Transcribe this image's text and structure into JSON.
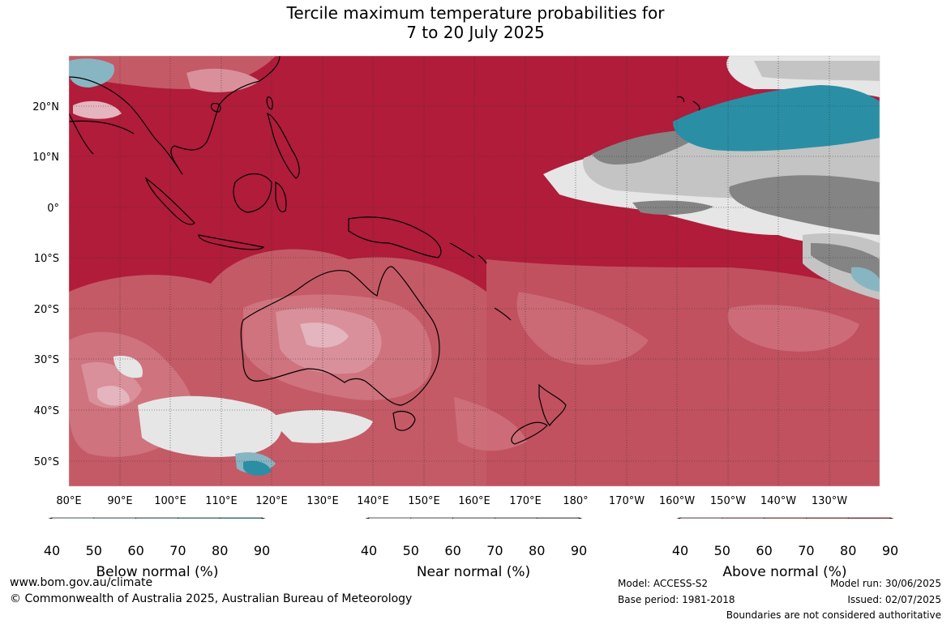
{
  "title": {
    "line1": "Tercile maximum temperature probabilities for",
    "line2": "7 to 20 July 2025"
  },
  "map": {
    "lat_labels": [
      "20°N",
      "10°N",
      "0°",
      "10°S",
      "20°S",
      "30°S",
      "40°S",
      "50°S"
    ],
    "lon_labels": [
      "80°E",
      "90°E",
      "100°E",
      "110°E",
      "120°E",
      "130°E",
      "140°E",
      "150°E",
      "160°E",
      "170°E",
      "180°",
      "170°W",
      "160°W",
      "150°W",
      "140°W",
      "130°W"
    ]
  },
  "colorbars": [
    {
      "name": "Below normal (%)",
      "ticks": [
        "40",
        "50",
        "60",
        "70",
        "80",
        "90"
      ],
      "colors": [
        "#ffffff",
        "#cde3e9",
        "#a8cad2",
        "#88b5c2",
        "#6aacb9",
        "#46a1b3",
        "#2a8fa5"
      ]
    },
    {
      "name": "Near normal (%)",
      "ticks": [
        "40",
        "50",
        "60",
        "70",
        "80",
        "90"
      ],
      "colors": [
        "#ffffff",
        "#e6e6e6",
        "#d4d4d4",
        "#c4c4c4",
        "#b3b3b3",
        "#a0a0a0",
        "#848484"
      ]
    },
    {
      "name": "Above normal (%)",
      "ticks": [
        "40",
        "50",
        "60",
        "70",
        "80",
        "90"
      ],
      "colors": [
        "#ffffff",
        "#e4b5be",
        "#d9909b",
        "#cf737e",
        "#c45a66",
        "#b93348",
        "#b01c3a"
      ]
    }
  ],
  "footer": {
    "website": "www.bom.gov.au/climate",
    "copyright": "© Commonwealth of Australia 2025, Australian Bureau of Meteorology",
    "model": "Model: ACCESS-S2",
    "base_period": "Base period: 1981-2018",
    "model_run": "Model run: 30/06/2025",
    "issued": "Issued: 02/07/2025",
    "disclaimer": "Boundaries are not considered authoritative"
  }
}
